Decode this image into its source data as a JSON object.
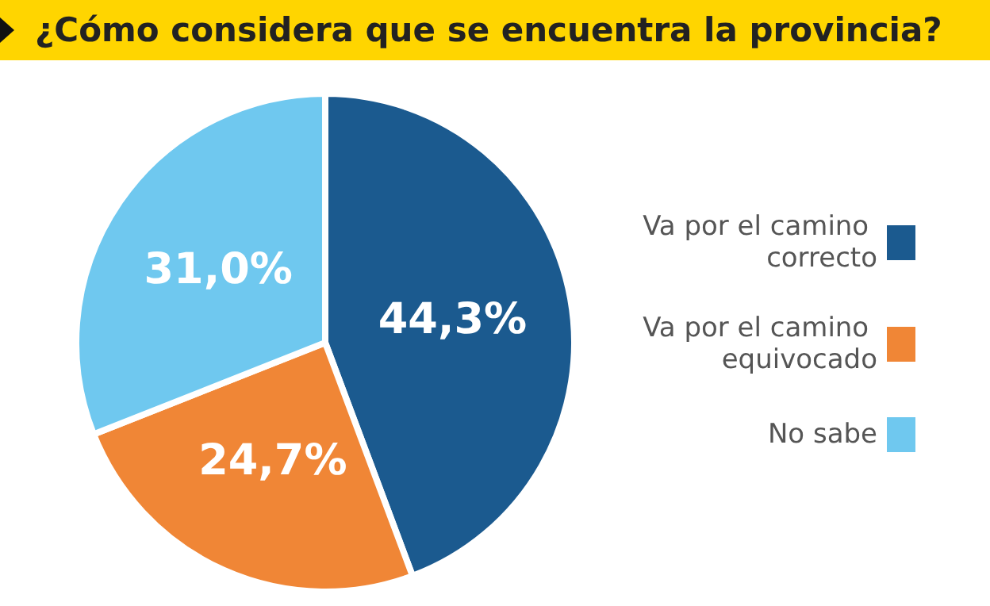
{
  "chart_data": {
    "type": "pie",
    "title": "¿Cómo considera que se encuentra la provincia?",
    "categories": [
      "Va por el camino correcto",
      "Va por el camino equivocado",
      "No sabe"
    ],
    "values": [
      44.3,
      24.7,
      31.0
    ],
    "colors": [
      "#1b5a8f",
      "#f08636",
      "#6fc8ef"
    ],
    "value_labels": [
      "44,3%",
      "24,7%",
      "31,0%"
    ],
    "legend": "right"
  }
}
